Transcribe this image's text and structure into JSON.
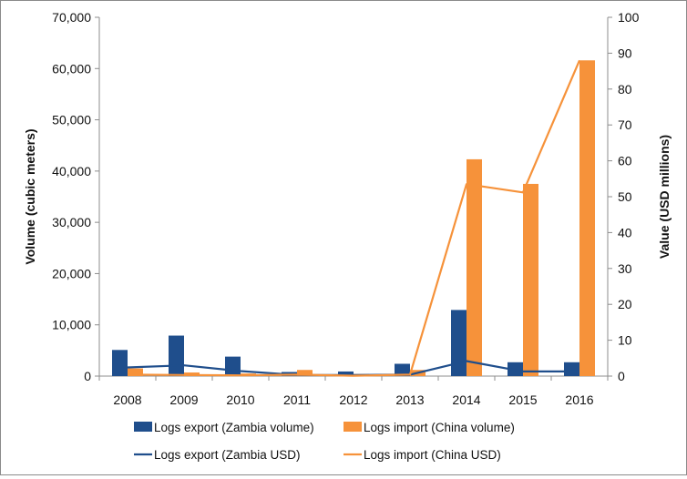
{
  "chart_data": {
    "type": "bar",
    "title": "",
    "categories": [
      "2008",
      "2009",
      "2010",
      "2011",
      "2012",
      "2013",
      "2014",
      "2015",
      "2016"
    ],
    "ylabel": "Volume (cubic meters)",
    "ylim": [
      0,
      70000
    ],
    "y_ticks": [
      "0",
      "10,000",
      "20,000",
      "30,000",
      "40,000",
      "50,000",
      "60,000",
      "70,000"
    ],
    "y2label": "Value (USD millions)",
    "y2lim": [
      0,
      100
    ],
    "y2_ticks": [
      "0",
      "10",
      "20",
      "30",
      "40",
      "50",
      "60",
      "70",
      "80",
      "90",
      "100"
    ],
    "grid": false,
    "legend_position": "bottom",
    "series": [
      {
        "name": "Logs export (Zambia volume)",
        "kind": "bar",
        "axis": "left",
        "color": "#1f4e8c",
        "values": [
          5100,
          7900,
          3800,
          800,
          900,
          2400,
          12900,
          2700,
          2700
        ]
      },
      {
        "name": "Logs import (China volume)",
        "kind": "bar",
        "axis": "left",
        "color": "#f6923a",
        "values": [
          1500,
          700,
          500,
          1200,
          400,
          1200,
          42300,
          37500,
          61600
        ]
      },
      {
        "name": "Logs export (Zambia USD)",
        "kind": "line",
        "axis": "right",
        "color": "#1f4e8c",
        "values": [
          2.4,
          3.0,
          1.4,
          0.3,
          0.3,
          0.4,
          4.2,
          1.3,
          1.3
        ]
      },
      {
        "name": "Logs import (China USD)",
        "kind": "line",
        "axis": "right",
        "color": "#f6923a",
        "values": [
          0.4,
          0.3,
          0.2,
          0.4,
          0.1,
          0.4,
          53.5,
          51.2,
          88.0
        ]
      }
    ]
  }
}
